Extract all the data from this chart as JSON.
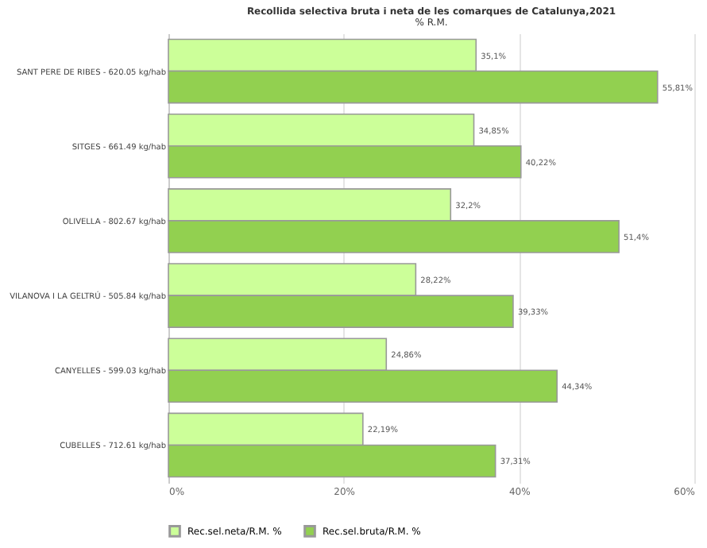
{
  "chart_data": {
    "type": "bar",
    "orientation": "horizontal",
    "title": "Recollida selectiva bruta i neta de les comarques de Catalunya,2021",
    "subtitle": "% R.M.",
    "categories": [
      "SANT PERE DE RIBES - 620.05 kg/hab",
      "SITGES - 661.49 kg/hab",
      "OLIVELLA - 802.67 kg/hab",
      "VILANOVA I LA GELTRÚ - 505.84 kg/hab",
      "CANYELLES - 599.03 kg/hab",
      "CUBELLES - 712.61 kg/hab"
    ],
    "series": [
      {
        "name": "Rec.sel.neta/R.M. %",
        "color": "#ccff99",
        "values": [
          35.1,
          34.85,
          32.2,
          28.22,
          24.86,
          22.19
        ],
        "value_labels": [
          "35,1%",
          "34,85%",
          "32,2%",
          "28,22%",
          "24,86%",
          "22,19%"
        ]
      },
      {
        "name": "Rec.sel.bruta/R.M. %",
        "color": "#92d050",
        "values": [
          55.81,
          40.22,
          51.4,
          39.33,
          44.34,
          37.31
        ],
        "value_labels": [
          "55,81%",
          "40,22%",
          "51,4%",
          "39,33%",
          "44,34%",
          "37,31%"
        ]
      }
    ],
    "xlim": [
      0,
      60
    ],
    "xticks": [
      {
        "value": 0,
        "label": "0%"
      },
      {
        "value": 20,
        "label": "20%"
      },
      {
        "value": 40,
        "label": "40%"
      },
      {
        "value": 60,
        "label": "60%"
      }
    ],
    "grid": "x",
    "legend": "bottom"
  }
}
